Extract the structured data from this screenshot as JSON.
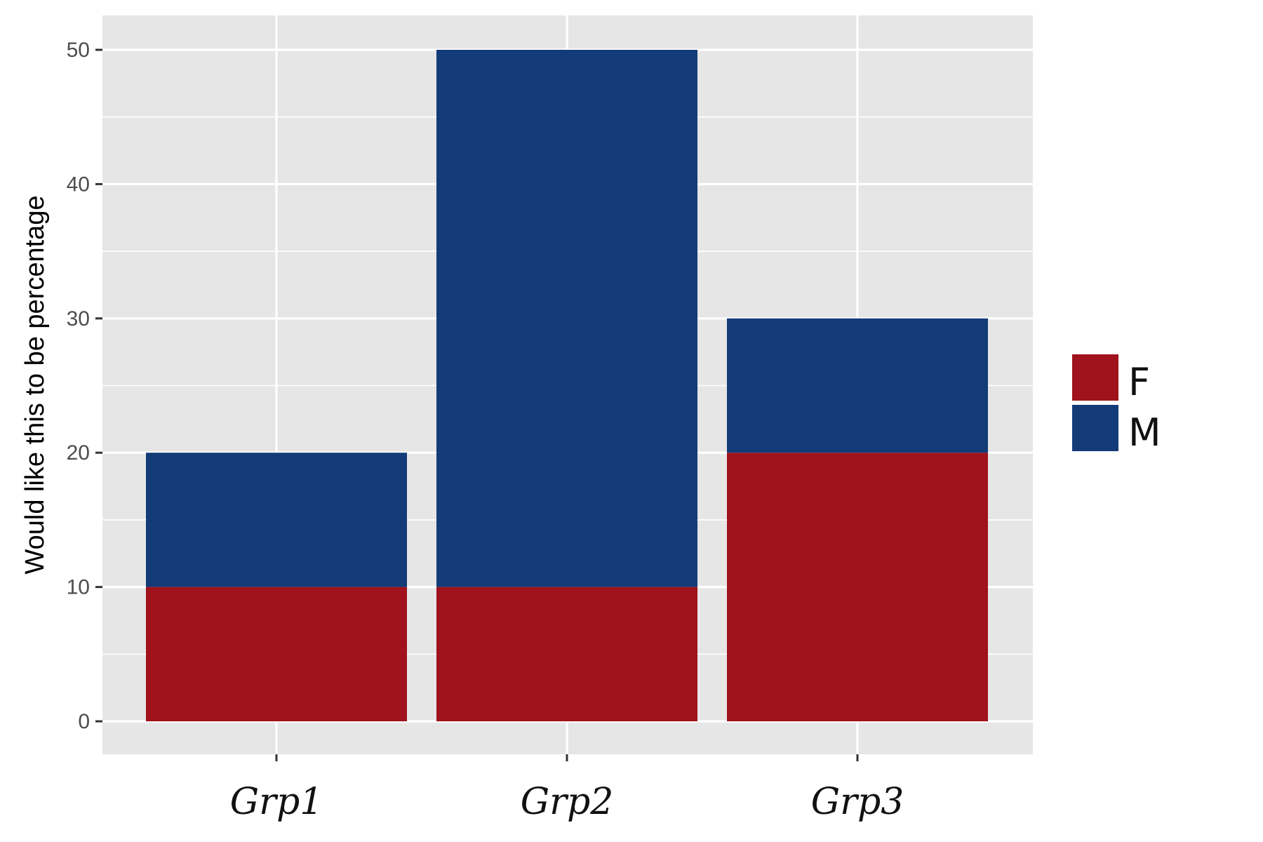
{
  "chart_data": {
    "type": "bar",
    "stacked": true,
    "categories": [
      "Grp1",
      "Grp2",
      "Grp3"
    ],
    "series": [
      {
        "name": "F",
        "values": [
          10,
          10,
          20
        ],
        "color": "#a0121c"
      },
      {
        "name": "M",
        "values": [
          10,
          40,
          10
        ],
        "color": "#133b78"
      }
    ],
    "title": "",
    "xlabel": "",
    "ylabel": "Would like this to be percentage",
    "ylim": [
      0,
      52.5
    ],
    "yticks": [
      0,
      10,
      20,
      30,
      40,
      50
    ],
    "grid": true,
    "legend_position": "right",
    "panel_background": "#e6e6e6",
    "grid_color": "#ffffff"
  }
}
